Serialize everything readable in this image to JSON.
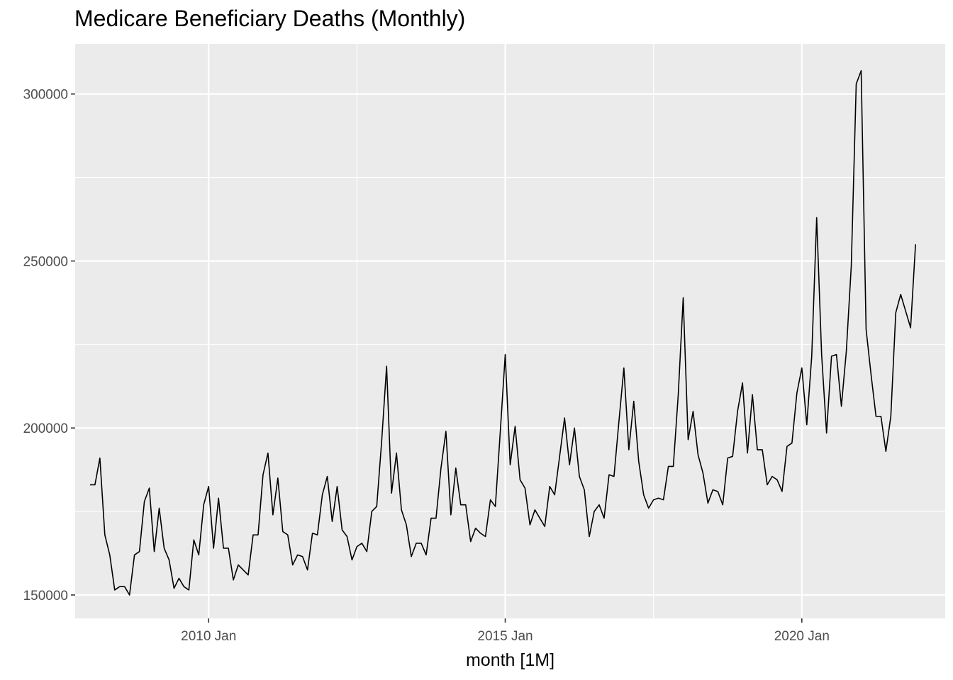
{
  "chart_data": {
    "type": "line",
    "title": "Medicare Beneficiary Deaths (Monthly)",
    "xlabel": "month [1M]",
    "ylabel": "",
    "x_start": "2008 Jan",
    "x_ticks": [
      {
        "label": "2010 Jan",
        "value": "2010-01"
      },
      {
        "label": "2015 Jan",
        "value": "2015-01"
      },
      {
        "label": "2020 Jan",
        "value": "2020-01"
      }
    ],
    "y_ticks": [
      150000,
      200000,
      250000,
      300000
    ],
    "ylim": [
      143000,
      315000
    ],
    "xlim": [
      "2007-10",
      "2022-06"
    ],
    "grid": true,
    "background": "#ebebeb",
    "line_color": "#000000",
    "series": [
      {
        "values": [
          183000,
          183000,
          191000,
          168000,
          162000,
          151500,
          152500,
          152500,
          150000,
          162000,
          163000,
          178000,
          182000,
          163000,
          176000,
          164000,
          160500,
          152000,
          155000,
          152500,
          151500,
          166500,
          162000,
          177000,
          182500,
          164000,
          179000,
          164000,
          164000,
          154500,
          159000,
          157500,
          156000,
          168000,
          168000,
          186000,
          192500,
          174000,
          185000,
          169000,
          168000,
          159000,
          162000,
          161500,
          157500,
          168500,
          168000,
          180000,
          185500,
          172000,
          182500,
          169500,
          167500,
          160500,
          164500,
          165500,
          163000,
          175000,
          176500,
          196000,
          218500,
          180500,
          192500,
          175500,
          171000,
          161500,
          165500,
          165500,
          162000,
          173000,
          173000,
          188000,
          199000,
          174000,
          188000,
          177000,
          177000,
          166000,
          170000,
          168500,
          167500,
          178500,
          176500,
          199000,
          222000,
          189000,
          200500,
          184500,
          182000,
          171000,
          175500,
          173000,
          170500,
          182500,
          180000,
          191500,
          203000,
          189000,
          200000,
          185500,
          181500,
          167500,
          175000,
          177000,
          173000,
          186000,
          185500,
          202000,
          218000,
          193500,
          208000,
          190000,
          180000,
          176000,
          178500,
          179000,
          178500,
          188500,
          188500,
          210000,
          239000,
          196500,
          205000,
          192000,
          186500,
          177500,
          181500,
          181000,
          177000,
          191000,
          191500,
          205000,
          213500,
          192500,
          210000,
          193500,
          193500,
          183000,
          185500,
          184500,
          181000,
          194500,
          195500,
          210500,
          218000,
          201000,
          221500,
          263000,
          222000,
          198500,
          221500,
          222000,
          206500,
          223000,
          248500,
          303000,
          307000,
          229500,
          216000,
          203500,
          203500,
          193000,
          203500,
          234500,
          240000,
          235000,
          230000,
          255000
        ]
      }
    ]
  }
}
